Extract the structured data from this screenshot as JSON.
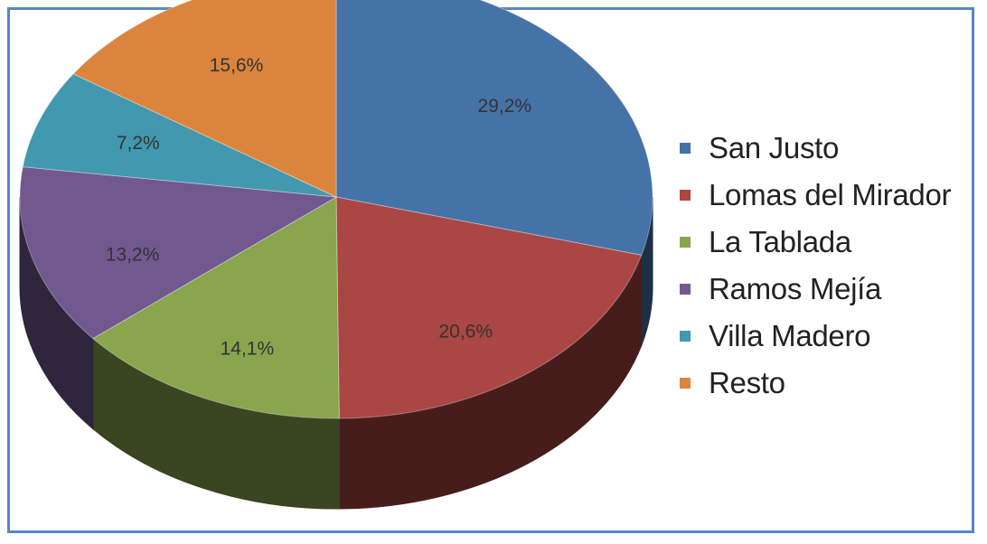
{
  "chart_data": {
    "type": "pie",
    "style": "3d",
    "slices": [
      {
        "name": "San Justo",
        "value": 29.2,
        "label": "29,2%",
        "color": "#4572a7"
      },
      {
        "name": "Lomas del Mirador",
        "value": 20.6,
        "label": "20,6%",
        "color": "#aa4643"
      },
      {
        "name": "La Tablada",
        "value": 14.1,
        "label": "14,1%",
        "color": "#89a54e"
      },
      {
        "name": "Ramos Mejía",
        "value": 13.2,
        "label": "13,2%",
        "color": "#71588f"
      },
      {
        "name": "Villa Madero",
        "value": 7.2,
        "label": "7,2%",
        "color": "#4198af"
      },
      {
        "name": "Resto",
        "value": 15.6,
        "label": "15,6%",
        "color": "#db843d"
      }
    ],
    "legend_position": "right",
    "frame_color": "#5a86c4"
  }
}
